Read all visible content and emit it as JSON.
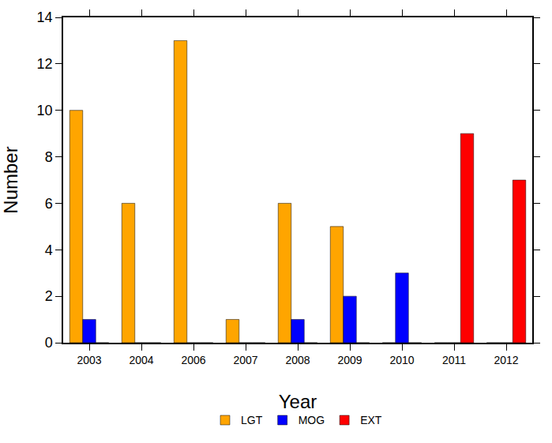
{
  "chart_data": {
    "type": "bar",
    "x_label": "Year",
    "y_label": "Number",
    "categories": [
      "2003",
      "2004",
      "2006",
      "2007",
      "2008",
      "2009",
      "2010",
      "2011",
      "2012"
    ],
    "series": [
      {
        "name": "LGT",
        "color": "#ffa500",
        "values": [
          10,
          6,
          13,
          1,
          6,
          5,
          0,
          0,
          0
        ]
      },
      {
        "name": "MOG",
        "color": "#0000ff",
        "values": [
          1,
          0,
          0,
          0,
          1,
          2,
          3,
          0,
          0
        ]
      },
      {
        "name": "EXT",
        "color": "#ff0000",
        "values": [
          0,
          0,
          0,
          0,
          0,
          0,
          0,
          9,
          7
        ]
      }
    ],
    "ylim": [
      0,
      14
    ],
    "yticks": [
      0,
      2,
      4,
      6,
      8,
      10,
      12,
      14
    ],
    "grid": false,
    "legend": "bottom"
  }
}
